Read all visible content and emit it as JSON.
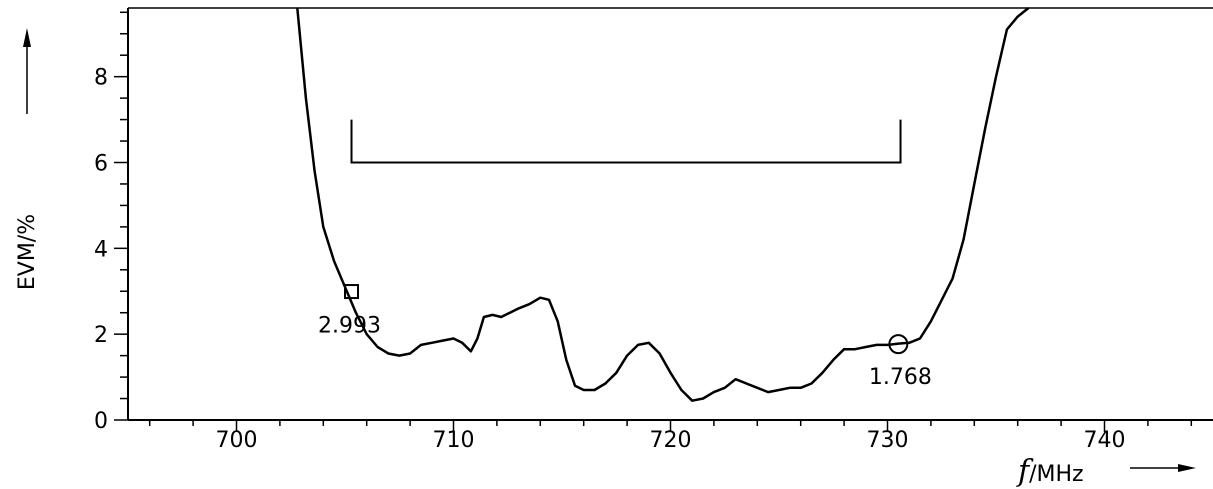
{
  "chart_data": {
    "type": "line",
    "title": "",
    "xlabel": {
      "symbol": "f",
      "unit": "/MHz"
    },
    "ylabel": "EVM/%",
    "xlim": [
      695,
      745
    ],
    "ylim": [
      0,
      9.6
    ],
    "x_ticks": [
      700,
      710,
      720,
      730,
      740
    ],
    "x_tick_labels": [
      "700",
      "710",
      "720",
      "730",
      "740"
    ],
    "y_ticks": [
      0,
      2,
      4,
      6,
      8
    ],
    "y_tick_labels": [
      "0",
      "2",
      "4",
      "6",
      "8"
    ],
    "grid": false,
    "legend": "none",
    "series": [
      {
        "x": [
          702.8,
          703.2,
          703.6,
          704.0,
          704.5,
          705.0,
          705.5,
          706.0,
          706.5,
          707.0,
          707.5,
          708.0,
          708.5,
          709.0,
          709.5,
          710.0,
          710.4,
          710.8,
          711.1,
          711.4,
          711.8,
          712.2,
          712.6,
          713.0,
          713.5,
          714.0,
          714.4,
          714.8,
          715.2,
          715.6,
          716.0,
          716.5,
          717.0,
          717.5,
          718.0,
          718.5,
          719.0,
          719.5,
          720.0,
          720.5,
          721.0,
          721.5,
          722.0,
          722.5,
          723.0,
          723.5,
          724.0,
          724.5,
          725.0,
          725.5,
          726.0,
          726.5,
          727.0,
          727.5,
          728.0,
          728.5,
          729.0,
          729.5,
          730.0,
          730.5,
          731.0,
          731.5,
          732.0,
          732.5,
          733.0,
          733.5,
          734.0,
          734.5,
          735.0,
          735.5,
          736.0,
          736.5
        ],
        "y": [
          9.6,
          7.5,
          5.8,
          4.5,
          3.7,
          3.1,
          2.5,
          2.0,
          1.7,
          1.55,
          1.5,
          1.55,
          1.75,
          1.8,
          1.85,
          1.9,
          1.8,
          1.6,
          1.9,
          2.4,
          2.45,
          2.4,
          2.5,
          2.6,
          2.7,
          2.85,
          2.8,
          2.3,
          1.4,
          0.8,
          0.7,
          0.7,
          0.85,
          1.1,
          1.5,
          1.75,
          1.8,
          1.55,
          1.1,
          0.7,
          0.45,
          0.5,
          0.65,
          0.75,
          0.95,
          0.85,
          0.75,
          0.65,
          0.7,
          0.75,
          0.75,
          0.85,
          1.1,
          1.4,
          1.65,
          1.65,
          1.7,
          1.75,
          1.75,
          1.78,
          1.8,
          1.9,
          2.3,
          2.8,
          3.3,
          4.2,
          5.5,
          6.8,
          8.0,
          9.1,
          9.4,
          9.6
        ]
      }
    ],
    "markers": [
      {
        "shape": "square",
        "x": 705.3,
        "y": 2.993,
        "label": "2.993"
      },
      {
        "shape": "circle",
        "x": 730.5,
        "y": 1.768,
        "label": "1.768"
      }
    ],
    "bracket": {
      "x_start": 705.3,
      "x_end": 730.6,
      "y_bar": 6.0,
      "y_top": 7.0
    }
  }
}
